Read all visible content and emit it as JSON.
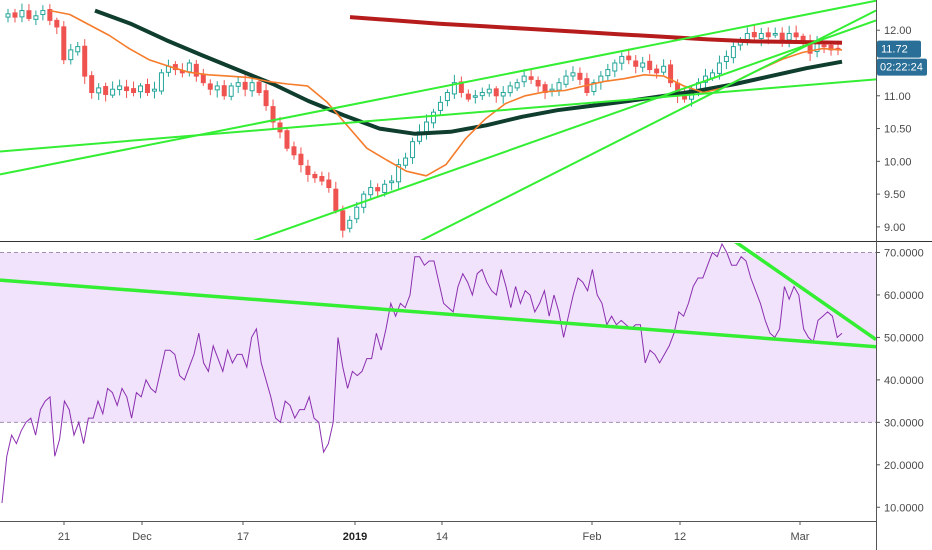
{
  "chart_data": [
    {
      "type": "candlestick",
      "ylim": [
        8.8,
        12.4
      ],
      "y_ticks": [
        "9.00",
        "9.50",
        "10.00",
        "10.50",
        "11.00",
        "11.50",
        "12.00"
      ],
      "price_badge": {
        "label": "11.72",
        "value": 11.72,
        "color": "#2a6f97"
      },
      "timer_badge": {
        "label": "02:22:24",
        "color": "#2a6f97"
      },
      "colors": {
        "up": "#26a69a",
        "down": "#ef5350",
        "ema_short": "#f57c2b",
        "ema_mid": "#0f3d2e",
        "ema_long": "#b71c1c",
        "trendline": "#33ee33"
      },
      "closes": [
        12.25,
        12.2,
        12.3,
        12.18,
        12.22,
        12.3,
        12.15,
        12.05,
        11.55,
        11.7,
        11.75,
        11.3,
        11.05,
        11.12,
        11.02,
        11.1,
        11.15,
        11.08,
        11.05,
        11.15,
        11.05,
        11.1,
        11.35,
        11.45,
        11.4,
        11.35,
        11.5,
        11.3,
        11.2,
        11.1,
        11.15,
        11.0,
        11.15,
        11.2,
        11.1,
        11.2,
        11.05,
        10.85,
        10.6,
        10.45,
        10.2,
        10.1,
        9.95,
        9.8,
        9.75,
        9.7,
        9.6,
        9.25,
        8.95,
        9.1,
        9.3,
        9.5,
        9.6,
        9.55,
        9.65,
        9.7,
        9.95,
        10.05,
        10.3,
        10.45,
        10.6,
        10.75,
        10.9,
        11.05,
        11.2,
        11.05,
        10.95,
        11.0,
        11.05,
        11.1,
        11.0,
        11.05,
        11.15,
        11.2,
        11.3,
        11.25,
        11.15,
        11.05,
        11.1,
        11.2,
        11.3,
        11.35,
        11.25,
        11.05,
        11.2,
        11.3,
        11.4,
        11.5,
        11.6,
        11.55,
        11.45,
        11.5,
        11.4,
        11.35,
        11.45,
        11.2,
        11.0,
        10.95,
        11.1,
        11.2,
        11.3,
        11.35,
        11.5,
        11.6,
        11.75,
        11.85,
        11.95,
        11.9,
        11.95,
        11.9,
        11.95,
        11.85,
        11.95,
        11.9,
        11.8,
        11.65,
        11.8,
        11.75,
        11.7,
        11.72
      ],
      "ema_short": [
        12.3,
        12.24,
        12.08,
        11.92,
        11.72,
        11.55,
        11.45,
        11.36,
        11.32,
        11.3,
        11.28,
        11.22,
        11.18,
        11.15,
        10.9,
        10.55,
        10.2,
        10.02,
        9.85,
        9.78,
        9.95,
        10.35,
        10.65,
        10.88,
        11.0,
        11.06,
        11.08,
        11.15,
        11.22,
        11.26,
        11.32,
        11.3,
        11.15,
        11.05,
        11.12,
        11.28,
        11.42,
        11.56,
        11.66,
        11.72,
        11.7
      ],
      "ema_mid": [
        12.3,
        12.1,
        11.85,
        11.62,
        11.4,
        11.18,
        10.92,
        10.7,
        10.5,
        10.42,
        10.45,
        10.55,
        10.68,
        10.78,
        10.85,
        10.92,
        11.0,
        11.08,
        11.18,
        11.3,
        11.42,
        11.52
      ],
      "ema_long": [
        12.2,
        12.15,
        12.1,
        12.06,
        12.02,
        11.98,
        11.94,
        11.9,
        11.86,
        11.83,
        11.82,
        11.81
      ],
      "trendlines": [
        {
          "a": [
            0,
            9.8
          ],
          "b": [
            160,
            12.45
          ]
        },
        {
          "a": [
            0,
            10.15
          ],
          "b": [
            160,
            11.25
          ]
        },
        {
          "a": [
            40,
            8.6
          ],
          "b": [
            160,
            12.15
          ]
        },
        {
          "a": [
            70,
            8.5
          ],
          "b": [
            160,
            12.3
          ]
        }
      ]
    },
    {
      "type": "line",
      "ylim": [
        7,
        72
      ],
      "y_ticks": [
        "10.0000",
        "20.0000",
        "30.0000",
        "40.0000",
        "50.0000",
        "60.0000",
        "70.0000"
      ],
      "band": [
        30,
        70
      ],
      "band_color": "#f1e3fb",
      "band_line_color": "#a58fb5",
      "line_color": "#8b2fb0",
      "values": [
        11,
        22,
        27,
        25,
        28,
        30,
        31,
        27,
        33,
        35,
        36,
        22,
        26,
        35,
        33,
        27,
        30,
        25,
        31,
        31,
        35,
        32,
        38,
        37,
        34,
        38,
        36,
        31,
        37,
        36,
        40,
        38,
        37,
        42,
        47,
        47,
        46,
        41,
        40,
        43,
        46,
        51,
        44,
        42,
        48,
        45,
        42,
        47,
        44,
        46,
        46,
        43,
        50,
        52,
        44,
        40,
        36,
        31,
        30,
        35,
        34,
        31,
        33,
        33,
        36,
        31,
        30,
        23,
        25,
        30,
        50,
        43,
        38,
        42,
        41,
        42,
        45,
        45,
        51,
        47,
        52,
        58,
        55,
        58,
        57,
        60,
        69,
        69,
        67,
        68,
        68,
        63,
        58,
        57,
        56,
        62,
        65,
        63,
        60,
        65,
        66,
        63,
        61,
        60,
        66,
        62,
        57,
        62,
        58,
        61,
        60,
        56,
        58,
        61,
        55,
        60,
        56,
        50,
        55,
        60,
        64,
        63,
        61,
        66,
        60,
        58,
        53,
        55,
        53,
        54,
        53,
        52,
        53,
        53,
        44,
        47,
        46,
        44,
        46,
        48,
        51,
        56,
        55,
        58,
        62,
        64,
        64,
        67,
        70,
        69,
        72,
        70,
        67,
        67,
        69,
        68,
        64,
        61,
        58,
        54,
        51,
        50,
        52,
        62,
        59,
        62,
        60,
        52,
        50,
        49,
        54,
        55,
        56,
        55,
        50,
        51
      ],
      "trendlines": [
        {
          "a": [
            0,
            63.5
          ],
          "b": [
            180,
            47.8
          ]
        },
        {
          "a": [
            148,
            75
          ],
          "b": [
            180,
            49.5
          ]
        }
      ]
    }
  ],
  "x_axis": {
    "labels": [
      {
        "text": "21",
        "bold": false
      },
      {
        "text": "Dec",
        "bold": false
      },
      {
        "text": "17",
        "bold": false
      },
      {
        "text": "2019",
        "bold": true
      },
      {
        "text": "14",
        "bold": false
      },
      {
        "text": "Feb",
        "bold": false
      },
      {
        "text": "12",
        "bold": false
      },
      {
        "text": "Mar",
        "bold": false
      }
    ]
  }
}
